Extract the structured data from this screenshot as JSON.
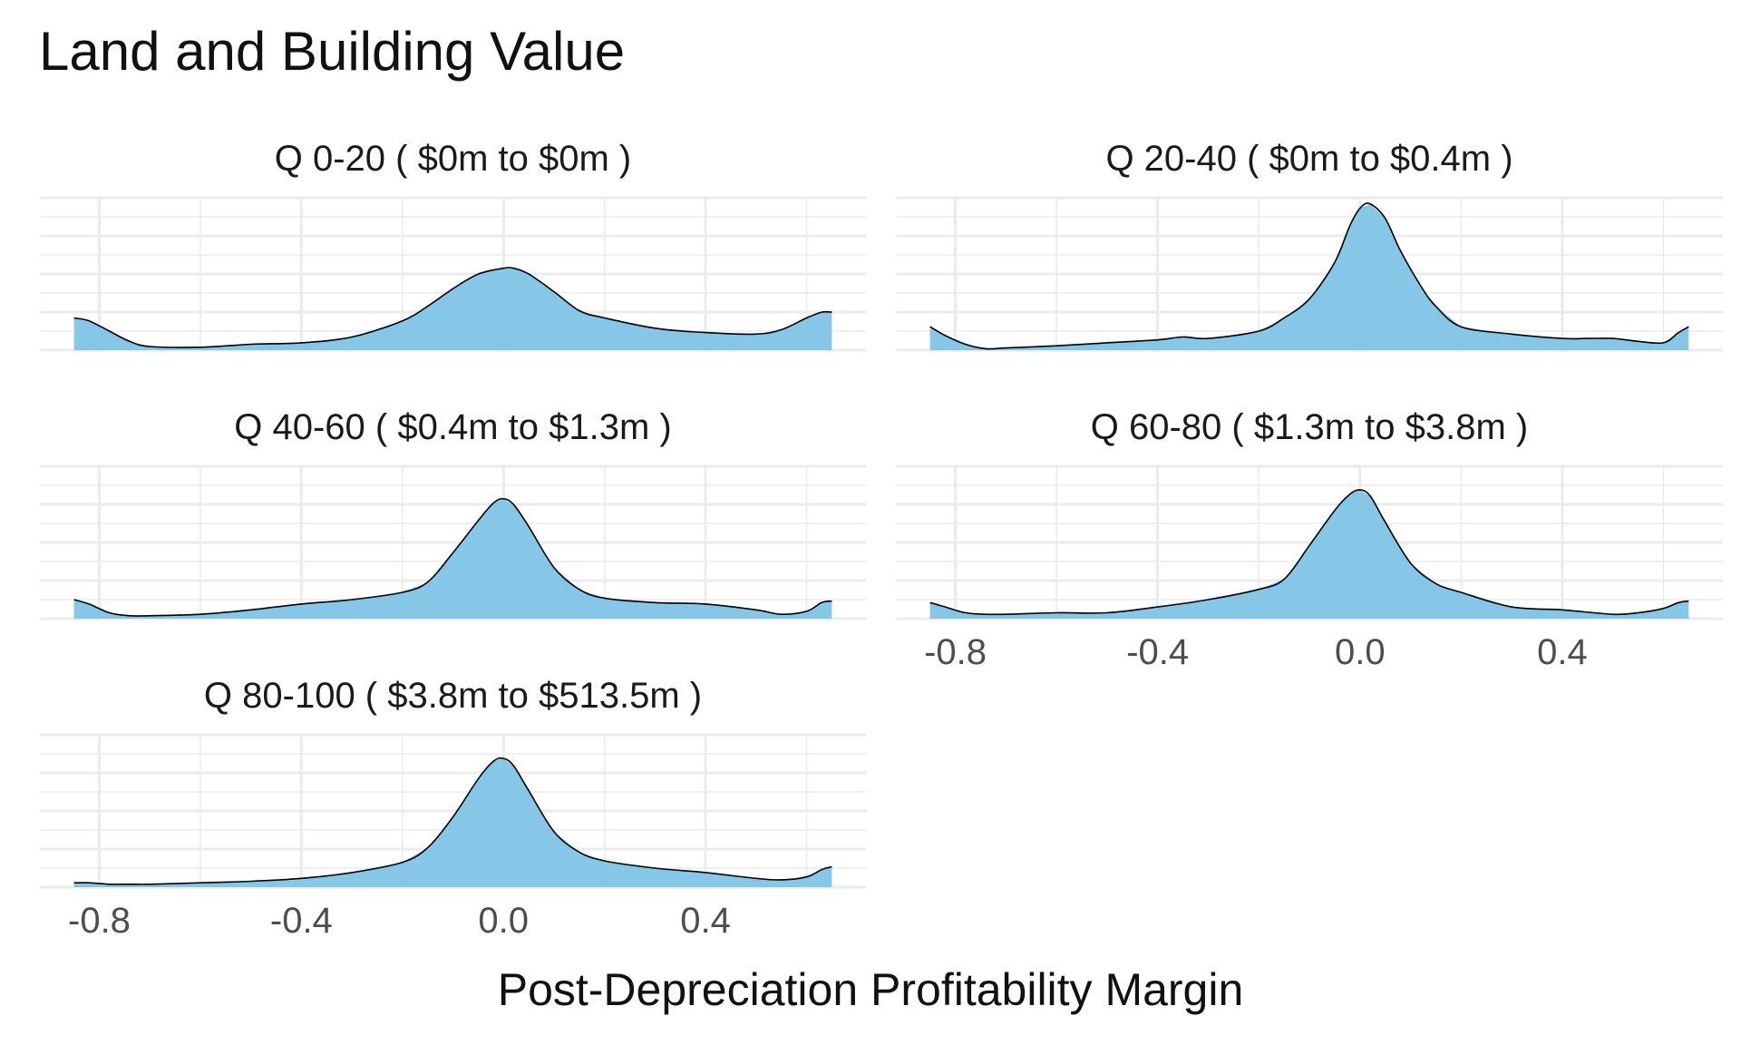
{
  "chart_data": {
    "type": "area",
    "title": "Land and Building Value",
    "xlabel": "Post-Depreciation Profitability Margin",
    "ylabel": "",
    "xlim": [
      -0.85,
      0.65
    ],
    "x_ticks": [
      "-0.8",
      "-0.4",
      "0.0",
      "0.4"
    ],
    "x_tick_values": [
      -0.8,
      -0.4,
      0.0,
      0.4
    ],
    "grid": true,
    "colors": {
      "fill": "#7fc4e6",
      "line": "#000000",
      "grid": "#ebebeb",
      "text": "#4d4d4d"
    },
    "panels": [
      {
        "label": "Q 0-20   ( $0m to $0m )",
        "x": [
          -0.85,
          -0.82,
          -0.78,
          -0.74,
          -0.7,
          -0.6,
          -0.5,
          -0.4,
          -0.3,
          -0.2,
          -0.15,
          -0.1,
          -0.05,
          0.0,
          0.02,
          0.05,
          0.1,
          0.15,
          0.2,
          0.3,
          0.4,
          0.5,
          0.55,
          0.6,
          0.63,
          0.65
        ],
        "y": [
          0.22,
          0.2,
          0.13,
          0.06,
          0.025,
          0.02,
          0.04,
          0.05,
          0.09,
          0.2,
          0.3,
          0.42,
          0.52,
          0.56,
          0.56,
          0.52,
          0.4,
          0.27,
          0.22,
          0.15,
          0.12,
          0.11,
          0.14,
          0.22,
          0.26,
          0.26
        ]
      },
      {
        "label": "Q 20-40   ( $0m to $0.4m )",
        "x": [
          -0.85,
          -0.82,
          -0.78,
          -0.74,
          -0.7,
          -0.6,
          -0.5,
          -0.4,
          -0.35,
          -0.3,
          -0.2,
          -0.15,
          -0.1,
          -0.05,
          -0.02,
          0.0,
          0.02,
          0.05,
          0.08,
          0.12,
          0.15,
          0.2,
          0.3,
          0.4,
          0.45,
          0.5,
          0.55,
          0.6,
          0.63,
          0.65
        ],
        "y": [
          0.16,
          0.1,
          0.04,
          0.01,
          0.015,
          0.03,
          0.05,
          0.07,
          0.09,
          0.08,
          0.13,
          0.22,
          0.35,
          0.6,
          0.85,
          0.97,
          1.0,
          0.9,
          0.68,
          0.44,
          0.3,
          0.16,
          0.11,
          0.08,
          0.08,
          0.08,
          0.06,
          0.05,
          0.12,
          0.16
        ]
      },
      {
        "label": "Q 40-60   ( $0.4m to $1.3m )",
        "x": [
          -0.85,
          -0.82,
          -0.78,
          -0.74,
          -0.7,
          -0.6,
          -0.5,
          -0.4,
          -0.3,
          -0.2,
          -0.15,
          -0.1,
          -0.05,
          -0.02,
          0.0,
          0.02,
          0.05,
          0.1,
          0.15,
          0.2,
          0.3,
          0.4,
          0.5,
          0.55,
          0.6,
          0.63,
          0.65
        ],
        "y": [
          0.13,
          0.1,
          0.04,
          0.02,
          0.02,
          0.03,
          0.06,
          0.1,
          0.13,
          0.18,
          0.25,
          0.45,
          0.67,
          0.79,
          0.82,
          0.78,
          0.63,
          0.35,
          0.2,
          0.14,
          0.11,
          0.1,
          0.06,
          0.03,
          0.05,
          0.11,
          0.12
        ]
      },
      {
        "label": "Q 60-80   ( $1.3m to $3.8m )",
        "x": [
          -0.85,
          -0.82,
          -0.78,
          -0.74,
          -0.7,
          -0.6,
          -0.5,
          -0.4,
          -0.3,
          -0.2,
          -0.15,
          -0.1,
          -0.05,
          -0.02,
          0.0,
          0.02,
          0.05,
          0.1,
          0.15,
          0.2,
          0.3,
          0.4,
          0.5,
          0.55,
          0.6,
          0.63,
          0.65
        ],
        "y": [
          0.11,
          0.08,
          0.04,
          0.03,
          0.03,
          0.04,
          0.04,
          0.08,
          0.13,
          0.2,
          0.27,
          0.5,
          0.74,
          0.85,
          0.88,
          0.84,
          0.66,
          0.38,
          0.24,
          0.18,
          0.08,
          0.06,
          0.03,
          0.04,
          0.07,
          0.11,
          0.12
        ]
      },
      {
        "label": "Q 80-100   ( $3.8m to $513.5m )",
        "x": [
          -0.85,
          -0.82,
          -0.78,
          -0.74,
          -0.7,
          -0.6,
          -0.5,
          -0.4,
          -0.3,
          -0.2,
          -0.15,
          -0.1,
          -0.05,
          -0.02,
          0.0,
          0.02,
          0.05,
          0.1,
          0.15,
          0.2,
          0.3,
          0.4,
          0.5,
          0.55,
          0.6,
          0.63,
          0.65
        ],
        "y": [
          0.03,
          0.03,
          0.02,
          0.02,
          0.02,
          0.03,
          0.04,
          0.06,
          0.1,
          0.17,
          0.27,
          0.48,
          0.74,
          0.86,
          0.88,
          0.83,
          0.66,
          0.38,
          0.24,
          0.18,
          0.13,
          0.1,
          0.06,
          0.05,
          0.07,
          0.12,
          0.14
        ]
      }
    ]
  }
}
